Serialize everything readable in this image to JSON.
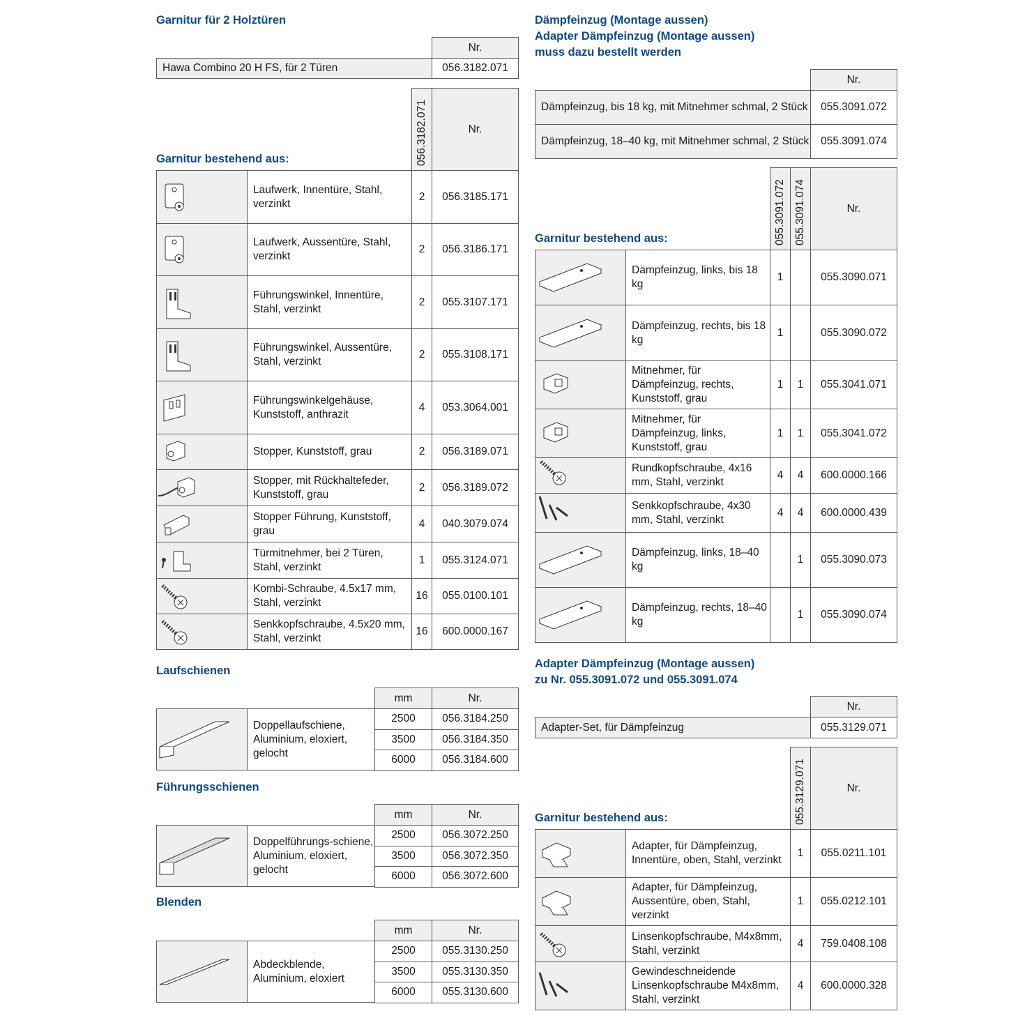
{
  "colors": {
    "heading": "#0b4a8a",
    "cell_grey": "#efeff0",
    "border": "#5a5a5a"
  },
  "left": {
    "title1": "Garnitur für 2 Holztüren",
    "set": {
      "nr_header": "Nr.",
      "desc": "Hawa Combino 20 H FS, für 2 Türen",
      "nr": "056.3182.071"
    },
    "parts": {
      "title": "Garnitur bestehend aus:",
      "qty_header": "056.3182.071",
      "nr_header": "Nr.",
      "rows": [
        {
          "icon": "runner-icon",
          "desc": "Laufwerk, Innentüre, Stahl, verzinkt",
          "qty": "2",
          "nr": "056.3185.171"
        },
        {
          "icon": "runner-icon",
          "desc": "Laufwerk, Aussentüre, Stahl, verzinkt",
          "qty": "2",
          "nr": "056.3186.171"
        },
        {
          "icon": "bracket-icon",
          "desc": "Führungswinkel, Innentüre, Stahl, verzinkt",
          "qty": "2",
          "nr": "055.3107.171"
        },
        {
          "icon": "bracket-icon",
          "desc": "Führungswinkel, Aussentüre, Stahl, verzinkt",
          "qty": "2",
          "nr": "055.3108.171"
        },
        {
          "icon": "housing-icon",
          "desc": "Führungswinkelgehäuse, Kunststoff, anthrazit",
          "qty": "4",
          "nr": "053.3064.001"
        },
        {
          "icon": "stopper-icon",
          "desc": "Stopper, Kunststoff, grau",
          "qty": "2",
          "nr": "056.3189.071"
        },
        {
          "icon": "stopper-spring-icon",
          "desc": "Stopper, mit Rückhaltefeder, Kunststoff, grau",
          "qty": "2",
          "nr": "056.3189.072"
        },
        {
          "icon": "stopper-guide-icon",
          "desc": "Stopper Führung, Kunststoff, grau",
          "qty": "4",
          "nr": "040.3079.074"
        },
        {
          "icon": "door-driver-icon",
          "desc": "Türmitnehmer, bei 2 Türen, Stahl, verzinkt",
          "qty": "1",
          "nr": "055.3124.071"
        },
        {
          "icon": "screw-icon",
          "desc": "Kombi-Schraube, 4.5x17 mm, Stahl, verzinkt",
          "qty": "16",
          "nr": "055.0100.101"
        },
        {
          "icon": "screw-icon",
          "desc": "Senkkopfschraube, 4.5x20 mm, Stahl, verzinkt",
          "qty": "16",
          "nr": "600.0000.167"
        }
      ]
    },
    "rails": [
      {
        "title": "Laufschienen",
        "mm_header": "mm",
        "nr_header": "Nr.",
        "icon": "track-icon",
        "desc": "Doppellaufschiene, Aluminium, eloxiert, gelocht",
        "rows": [
          {
            "mm": "2500",
            "nr": "056.3184.250"
          },
          {
            "mm": "3500",
            "nr": "056.3184.350"
          },
          {
            "mm": "6000",
            "nr": "056.3184.600"
          }
        ]
      },
      {
        "title": "Führungsschienen",
        "mm_header": "mm",
        "nr_header": "Nr.",
        "icon": "guide-track-icon",
        "desc": "Doppelführungs-schiene, Aluminium, eloxiert, gelocht",
        "rows": [
          {
            "mm": "2500",
            "nr": "056.3072.250"
          },
          {
            "mm": "3500",
            "nr": "056.3072.350"
          },
          {
            "mm": "6000",
            "nr": "056.3072.600"
          }
        ]
      },
      {
        "title": "Blenden",
        "mm_header": "mm",
        "nr_header": "Nr.",
        "icon": "cover-strip-icon",
        "desc": "Abdeckblende, Aluminium, eloxiert",
        "rows": [
          {
            "mm": "2500",
            "nr": "055.3130.250"
          },
          {
            "mm": "3500",
            "nr": "055.3130.350"
          },
          {
            "mm": "6000",
            "nr": "055.3130.600"
          }
        ]
      }
    ]
  },
  "right": {
    "title_lines": [
      "Dämpfeinzug (Montage aussen)",
      "Adapter Dämpfeinzug (Montage aussen)",
      "muss dazu bestellt werden"
    ],
    "set": {
      "nr_header": "Nr.",
      "rows": [
        {
          "desc": "Dämpfeinzug, bis 18 kg, mit Mitnehmer schmal, 2 Stück",
          "nr": "055.3091.072"
        },
        {
          "desc": "Dämpfeinzug, 18–40 kg, mit Mitnehmer schmal, 2 Stück",
          "nr": "055.3091.074"
        }
      ]
    },
    "parts": {
      "title": "Garnitur bestehend aus:",
      "qty_headers": [
        "055.3091.072",
        "055.3091.074"
      ],
      "nr_header": "Nr.",
      "rows": [
        {
          "icon": "damper-icon",
          "desc": "Dämpfeinzug, links, bis 18 kg",
          "qty": [
            "1",
            ""
          ],
          "nr": "055.3090.071"
        },
        {
          "icon": "damper-icon",
          "desc": "Dämpfeinzug, rechts, bis 18 kg",
          "qty": [
            "1",
            ""
          ],
          "nr": "055.3090.072"
        },
        {
          "icon": "catch-icon",
          "desc": "Mitnehmer, für Dämpfeinzug, rechts, Kunststoff, grau",
          "qty": [
            "1",
            "1"
          ],
          "nr": "055.3041.071"
        },
        {
          "icon": "catch-icon",
          "desc": "Mitnehmer, für Dämpfeinzug, links, Kunststoff, grau",
          "qty": [
            "1",
            "1"
          ],
          "nr": "055.3041.072"
        },
        {
          "icon": "screw-icon",
          "desc": "Rundkopfschraube, 4x16 mm, Stahl, verzinkt",
          "qty": [
            "4",
            "4"
          ],
          "nr": "600.0000.166"
        },
        {
          "icon": "screws-icon",
          "desc": "Senkkopfschraube, 4x30 mm, Stahl, verzinkt",
          "qty": [
            "4",
            "4"
          ],
          "nr": "600.0000.439"
        },
        {
          "icon": "damper-icon",
          "desc": "Dämpfeinzug, links, 18–40 kg",
          "qty": [
            "",
            "1"
          ],
          "nr": "055.3090.073"
        },
        {
          "icon": "damper-icon",
          "desc": "Dämpfeinzug, rechts, 18–40 kg",
          "qty": [
            "",
            "1"
          ],
          "nr": "055.3090.074"
        }
      ]
    },
    "adapter_title_lines": [
      "Adapter Dämpfeinzug (Montage aussen)",
      "zu Nr. 055.3091.072 und 055.3091.074"
    ],
    "adapter_set": {
      "nr_header": "Nr.",
      "desc": "Adapter-Set, für Dämpfeinzug",
      "nr": "055.3129.071"
    },
    "adapter_parts": {
      "title": "Garnitur bestehend aus:",
      "qty_header": "055.3129.071",
      "nr_header": "Nr.",
      "rows": [
        {
          "icon": "adapter-icon",
          "desc": "Adapter, für Dämpfeinzug, Innentüre, oben, Stahl, verzinkt",
          "qty": "1",
          "nr": "055.0211.101"
        },
        {
          "icon": "adapter-icon",
          "desc": "Adapter, für Dämpfeinzug, Aussentüre, oben, Stahl, verzinkt",
          "qty": "1",
          "nr": "055.0212.101"
        },
        {
          "icon": "screw-icon",
          "desc": "Linsenkopfschraube, M4x8mm, Stahl, verzinkt",
          "qty": "4",
          "nr": "759.0408.108"
        },
        {
          "icon": "screws-icon",
          "desc": "Gewindeschneidende Linsenkopfschraube M4x8mm, Stahl, verzinkt",
          "qty": "4",
          "nr": "600.0000.328"
        }
      ]
    }
  }
}
